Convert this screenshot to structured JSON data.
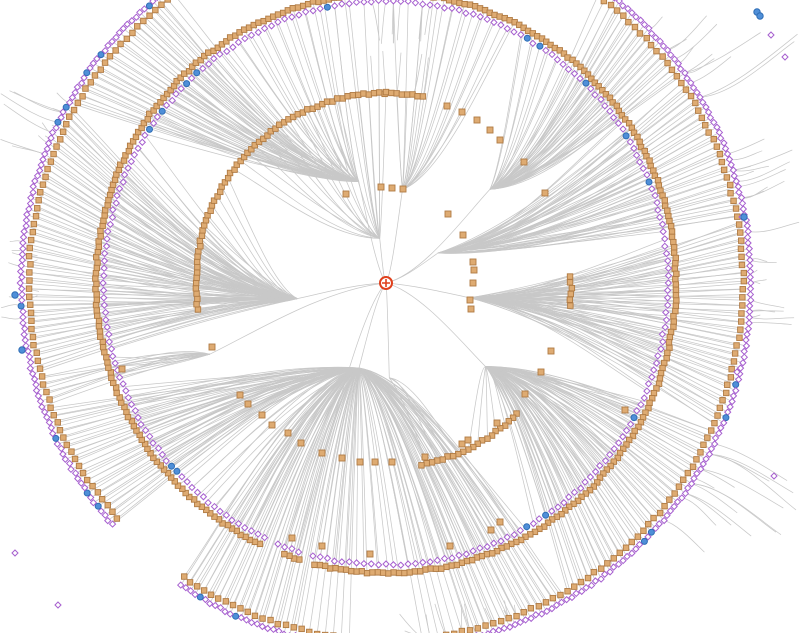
{
  "diagram": {
    "type": "radial-tree",
    "colors": {
      "background": "#ffffff",
      "edge": "#c8c8c8",
      "root_fill": "#ffffff",
      "root_stroke": "#e0401c",
      "internal_fill": "#deab72",
      "internal_stroke": "#b07b44",
      "leaf_stroke": "#a65fcf",
      "leaf_fill": "#ffffff",
      "highlight_fill": "#4f8fd8",
      "highlight_stroke": "#2f6db5"
    },
    "node_shapes": {
      "root": "circle-cross",
      "internal": "square",
      "leaf": "diamond",
      "highlight": "circle"
    }
  }
}
